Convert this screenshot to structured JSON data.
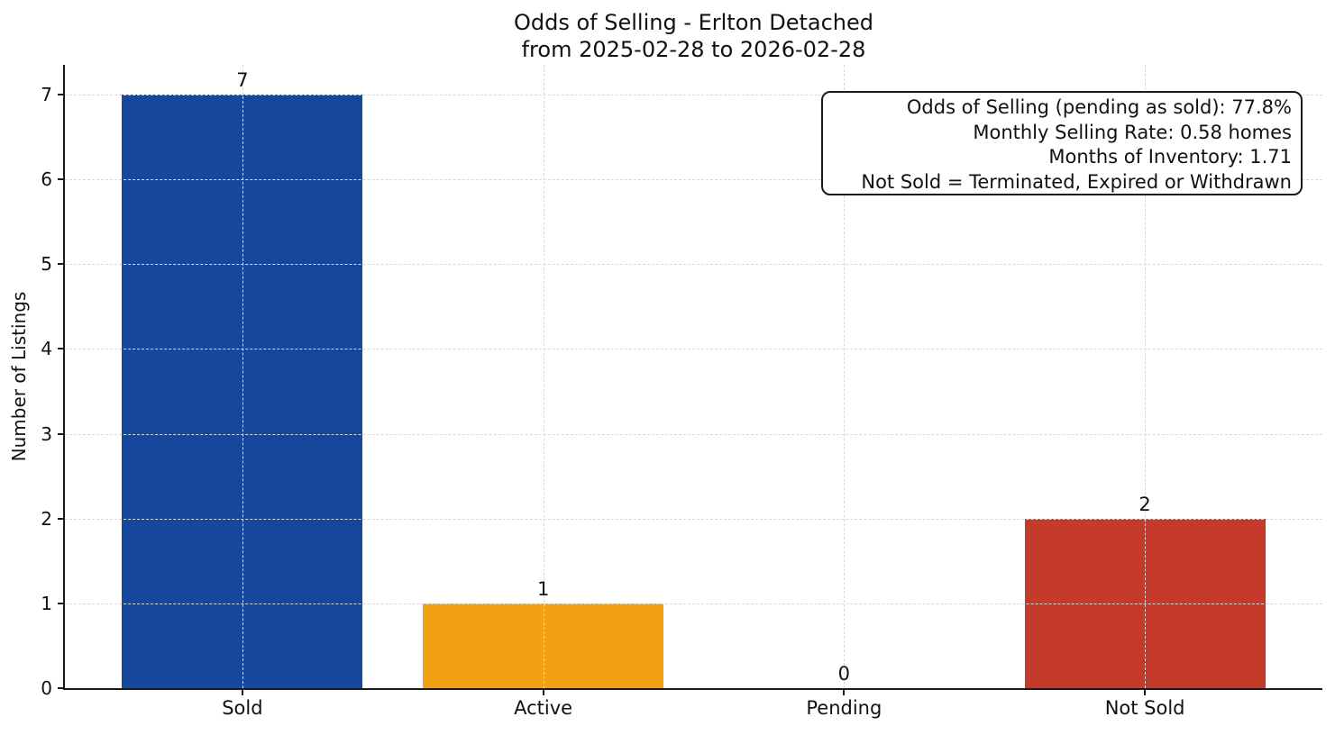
{
  "chart_data": {
    "type": "bar",
    "title": "Odds of Selling - Erlton Detached",
    "subtitle": "from 2025-02-28 to 2026-02-28",
    "categories": [
      "Sold",
      "Active",
      "Pending",
      "Not Sold"
    ],
    "values": [
      7,
      1,
      0,
      2
    ],
    "bar_colors": [
      "#15479D",
      "#F2A113",
      null,
      "#C43A2B"
    ],
    "value_labels": [
      "7",
      "1",
      "0",
      "2"
    ],
    "ylabel": "Number of Listings",
    "yticks": [
      0,
      1,
      2,
      3,
      4,
      5,
      6,
      7
    ],
    "ylim": [
      0,
      7.35
    ],
    "grid": true,
    "legend": null,
    "annotation": {
      "lines": [
        "Odds of Selling (pending as sold): 77.8%",
        "Monthly Selling Rate: 0.58 homes",
        "Months of Inventory: 1.71",
        "Not Sold = Terminated, Expired or Withdrawn"
      ]
    }
  }
}
